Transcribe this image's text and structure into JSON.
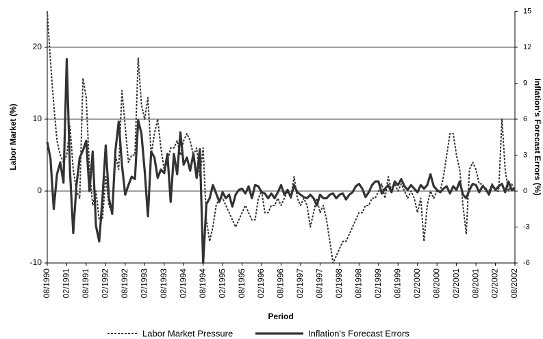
{
  "chart_data": {
    "type": "line",
    "x_label": "Period",
    "y_label": "Labor Market (%)",
    "y2_label": "Inflation's Forecast Errors (%)",
    "x": [
      "08/1990",
      "09/1990",
      "10/1990",
      "11/1990",
      "12/1990",
      "01/1991",
      "02/1991",
      "03/1991",
      "04/1991",
      "05/1991",
      "06/1991",
      "07/1991",
      "08/1991",
      "09/1991",
      "10/1991",
      "11/1991",
      "12/1991",
      "01/1992",
      "02/1992",
      "03/1992",
      "04/1992",
      "05/1992",
      "06/1992",
      "07/1992",
      "08/1992",
      "09/1992",
      "10/1992",
      "11/1992",
      "12/1992",
      "01/1993",
      "02/1993",
      "03/1993",
      "04/1993",
      "05/1993",
      "06/1993",
      "07/1993",
      "08/1993",
      "09/1993",
      "10/1993",
      "11/1993",
      "12/1993",
      "01/1994",
      "02/1994",
      "03/1994",
      "04/1994",
      "05/1994",
      "06/1994",
      "07/1994",
      "08/1994",
      "09/1994",
      "10/1994",
      "11/1994",
      "12/1994",
      "01/1995",
      "02/1995",
      "03/1995",
      "04/1995",
      "05/1995",
      "06/1995",
      "07/1995",
      "08/1995",
      "09/1995",
      "10/1995",
      "11/1995",
      "12/1995",
      "01/1996",
      "02/1996",
      "03/1996",
      "04/1996",
      "05/1996",
      "06/1996",
      "07/1996",
      "08/1996",
      "09/1996",
      "10/1996",
      "11/1996",
      "12/1996",
      "01/1997",
      "02/1997",
      "03/1997",
      "04/1997",
      "05/1997",
      "06/1997",
      "07/1997",
      "08/1997",
      "09/1997",
      "10/1997",
      "11/1997",
      "12/1997",
      "01/1998",
      "02/1998",
      "03/1998",
      "04/1998",
      "05/1998",
      "06/1998",
      "07/1998",
      "08/1998",
      "09/1998",
      "10/1998",
      "11/1998",
      "12/1998",
      "01/1999",
      "02/1999",
      "03/1999",
      "04/1999",
      "05/1999",
      "06/1999",
      "07/1999",
      "08/1999",
      "09/1999",
      "10/1999",
      "11/1999",
      "12/1999",
      "01/2000",
      "02/2000",
      "03/2000",
      "04/2000",
      "05/2000",
      "06/2000",
      "07/2000",
      "08/2000",
      "09/2000",
      "10/2000",
      "11/2000",
      "12/2000",
      "01/2001",
      "02/2001",
      "03/2001",
      "04/2001",
      "05/2001",
      "06/2001",
      "07/2001",
      "08/2001",
      "09/2001",
      "10/2001",
      "11/2001",
      "12/2001",
      "01/2002",
      "02/2002",
      "03/2002",
      "04/2002",
      "05/2002",
      "06/2002",
      "07/2002",
      "08/2002"
    ],
    "xticks": [
      "08/1990",
      "02/1991",
      "08/1991",
      "02/1992",
      "08/1992",
      "02/1993",
      "08/1993",
      "02/1994",
      "08/1994",
      "02/1995",
      "08/1995",
      "02/1996",
      "08/1996",
      "02/1997",
      "08/1997",
      "02/1998",
      "08/1998",
      "02/1999",
      "08/1999",
      "02/2000",
      "08/2000",
      "02/2001",
      "08/2001",
      "02/2002",
      "08/2002"
    ],
    "ylim": [
      -10,
      25
    ],
    "yticks": [
      -10,
      0,
      10,
      20
    ],
    "y2lim": [
      -6,
      15
    ],
    "y2ticks": [
      -6,
      -3,
      0,
      3,
      6,
      9,
      12,
      15
    ],
    "grid": true,
    "series": [
      {
        "name": "Labor Market Pressure",
        "color": "#333333",
        "style": "dashed",
        "axis": "y",
        "values": [
          25,
          18,
          12,
          7,
          5,
          4,
          5,
          9,
          3,
          0,
          -1,
          15.7,
          13,
          3,
          -2,
          0,
          -4,
          -4,
          2,
          -2,
          -3,
          5,
          3,
          14,
          9,
          4,
          5,
          5,
          18.5,
          12,
          10,
          13,
          5,
          8,
          10,
          6,
          3,
          4,
          6,
          6,
          7,
          5,
          7,
          8,
          7,
          5,
          6,
          2,
          6,
          -4,
          -7,
          -5,
          -2,
          -1,
          -1,
          -2,
          -3,
          -4,
          -5,
          -4,
          -3,
          -2,
          -3,
          -4,
          -4,
          -1,
          0,
          -3,
          -3,
          -2,
          -2,
          -1,
          -2,
          -1,
          0,
          -1,
          2,
          -1,
          -2,
          -1,
          -2,
          -5,
          -3,
          -1,
          -3,
          -2,
          -4,
          -7,
          -10,
          -9,
          -8,
          -7,
          -7,
          -6,
          -5,
          -4,
          -3,
          -3,
          -2,
          -2,
          -1,
          -1,
          0,
          1,
          -1,
          2,
          0,
          1,
          0,
          1,
          0,
          -1,
          0,
          -1,
          -3,
          -1,
          -7,
          -2,
          0,
          -1,
          0,
          0,
          2,
          5,
          8,
          8,
          5,
          3,
          -2,
          -6,
          3,
          4,
          3,
          1,
          1,
          0,
          0,
          1,
          0,
          0,
          10,
          3,
          0,
          1,
          0
        ]
      },
      {
        "name": "Inflation's Forecast Errors",
        "color": "#333333",
        "style": "solid",
        "axis": "y2",
        "values": [
          4.1,
          2.7,
          -1.5,
          1.4,
          2.4,
          0.7,
          11,
          1.7,
          -3.5,
          0.5,
          2.8,
          3.4,
          4.2,
          0,
          3.3,
          -2.9,
          -4.2,
          -0.6,
          3.8,
          -0.6,
          -1.9,
          3.4,
          5.8,
          2.2,
          -0.3,
          0.5,
          1.2,
          1.0,
          5.9,
          4.8,
          1.7,
          -2.1,
          3.3,
          2.8,
          1.1,
          1.8,
          1.5,
          3.1,
          -0.9,
          3.1,
          1.4,
          4.9,
          2.2,
          2.8,
          1.7,
          3.1,
          1.1,
          3.5,
          -6,
          -1.1,
          -0.6,
          0.5,
          -0.2,
          -0.9,
          -0.1,
          -0.6,
          -0.3,
          -1.3,
          -0.3,
          0.1,
          0.2,
          -0.2,
          0.4,
          -0.6,
          0.5,
          0.4,
          -0.1,
          -0.2,
          -0.6,
          -0.2,
          -0.6,
          -0.1,
          0.5,
          -0.3,
          0.1,
          -0.5,
          0.5,
          -0.1,
          -0.3,
          -0.5,
          -0.6,
          -0.3,
          -0.6,
          -1.2,
          -0.3,
          -0.6,
          -0.6,
          -0.3,
          -0.2,
          -0.6,
          -0.3,
          -0.2,
          -0.7,
          -0.3,
          -0.1,
          0.4,
          0.6,
          0.2,
          -0.5,
          -0.1,
          0.5,
          0.8,
          0.8,
          -0.2,
          0.2,
          0.5,
          -0.1,
          0.8,
          0.5,
          1.0,
          0.4,
          0.1,
          0.5,
          0.2,
          -0.1,
          0.5,
          0.2,
          0.5,
          1.4,
          0.4,
          0.1,
          -0.1,
          0.2,
          0.4,
          -0.2,
          0.4,
          0.1,
          0.8,
          -0.3,
          -0.6,
          0.1,
          0.6,
          0.5,
          -0.1,
          0.4,
          0.2,
          -0.3,
          0.5,
          0.1,
          0.4,
          0.6,
          -0.1,
          0.8,
          0.1,
          0.2
        ]
      }
    ]
  }
}
